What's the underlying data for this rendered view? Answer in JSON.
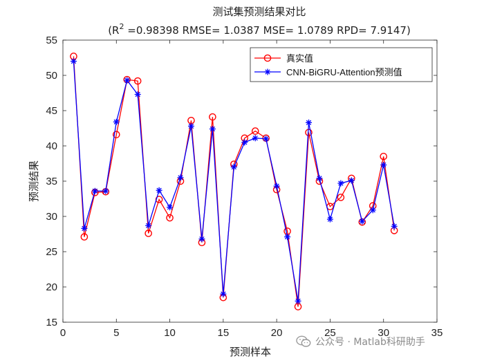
{
  "chart_data": {
    "type": "line",
    "title": "测试集预测结果对比",
    "subtitle": {
      "prefix": "(R",
      "sup": "2",
      "rest": " =0.98398 RMSE= 1.0387 MSE= 1.0789 RPD= 7.9147)"
    },
    "xlabel": "预测样本",
    "ylabel": "预测结果",
    "xlim": [
      0,
      35
    ],
    "ylim": [
      15,
      55
    ],
    "xticks": [
      0,
      5,
      10,
      15,
      20,
      25,
      30,
      35
    ],
    "yticks": [
      15,
      20,
      25,
      30,
      35,
      40,
      45,
      50,
      55
    ],
    "grid": false,
    "legend_position": "top-right",
    "x": [
      1,
      2,
      3,
      4,
      5,
      6,
      7,
      8,
      9,
      10,
      11,
      12,
      13,
      14,
      15,
      16,
      17,
      18,
      19,
      20,
      21,
      22,
      23,
      24,
      25,
      26,
      27,
      28,
      29,
      30,
      31
    ],
    "series": [
      {
        "name": "真实值",
        "color": "#ff0000",
        "marker": "circle",
        "values": [
          52.7,
          27.1,
          33.4,
          33.5,
          41.6,
          49.4,
          49.2,
          27.6,
          32.4,
          29.8,
          35.0,
          43.6,
          26.3,
          44.1,
          18.5,
          37.4,
          41.1,
          42.1,
          41.1,
          33.8,
          27.9,
          17.2,
          41.9,
          35.0,
          31.4,
          32.7,
          35.4,
          29.2,
          31.5,
          38.5,
          28.0
        ]
      },
      {
        "name": "CNN-BiGRU-Attention预测值",
        "color": "#0000ff",
        "marker": "asterisk",
        "values": [
          52.0,
          28.3,
          33.6,
          33.6,
          43.4,
          49.3,
          47.3,
          28.7,
          33.7,
          31.3,
          35.5,
          42.8,
          26.8,
          42.4,
          19.0,
          37.0,
          40.5,
          41.1,
          41.0,
          34.3,
          27.1,
          18.0,
          43.3,
          35.4,
          29.6,
          34.7,
          35.1,
          29.3,
          30.9,
          37.3,
          28.6
        ]
      }
    ]
  },
  "watermark": {
    "text": "公众号 · Matlab科研助手",
    "icon": "wechat-icon"
  }
}
